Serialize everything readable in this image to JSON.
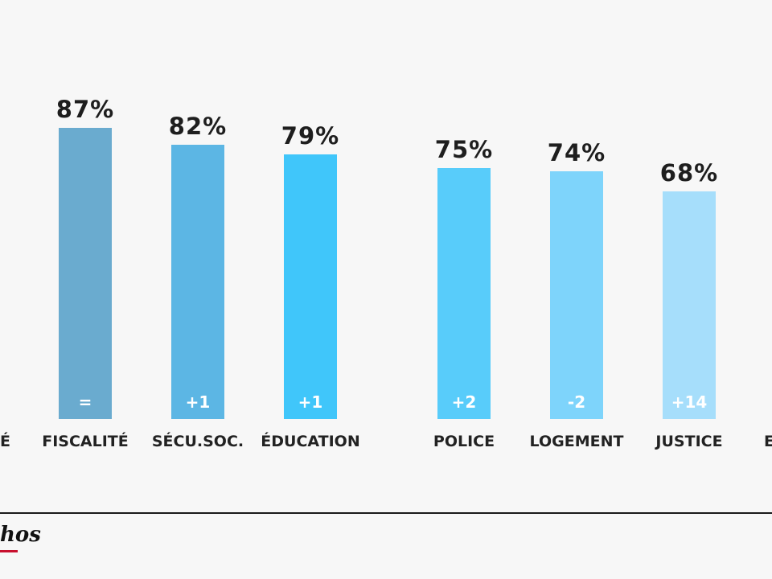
{
  "chart_data": {
    "type": "bar",
    "categories": [
      "FISCALITÉ",
      "SÉCU.SOC.",
      "ÉDUCATION",
      "POLICE",
      "LOGEMENT",
      "JUSTICE"
    ],
    "values": [
      87,
      82,
      79,
      75,
      74,
      68
    ],
    "value_labels": [
      "87%",
      "82%",
      "79%",
      "75%",
      "74%",
      "68%"
    ],
    "deltas": [
      "=",
      "+1",
      "+1",
      "+2",
      "-2",
      "+14"
    ],
    "colors": [
      "#6aabcf",
      "#5cb6e4",
      "#40c6fa",
      "#58ccfa",
      "#7ed4fb",
      "#a6defb"
    ],
    "ylim": [
      0,
      100
    ],
    "title": "",
    "xlabel": "",
    "ylabel": "",
    "grid": false
  },
  "partial": {
    "left_label": "É",
    "right_label": "E"
  },
  "logo": {
    "text": "hos"
  }
}
